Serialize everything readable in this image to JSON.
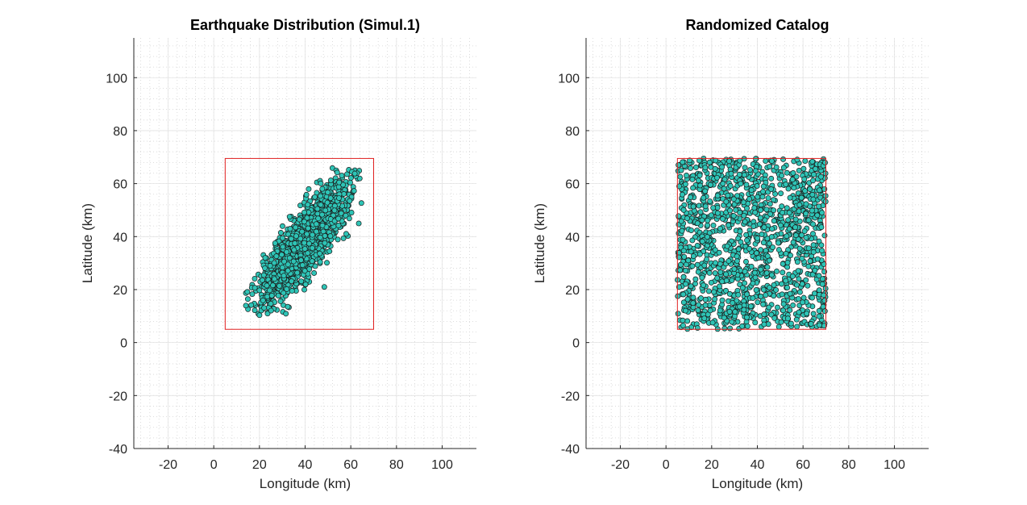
{
  "chart_data": [
    {
      "type": "scatter",
      "title": "Earthquake Distribution (Simul.1)",
      "xlabel": "Longitude (km)",
      "ylabel": "Latitude (km)",
      "xlim": [
        -35,
        115
      ],
      "ylim": [
        -40,
        115
      ],
      "xticks": [
        -20,
        0,
        20,
        40,
        60,
        80,
        100
      ],
      "yticks": [
        -40,
        -20,
        0,
        20,
        40,
        60,
        80,
        100
      ],
      "grid": "major and minor (dotted)",
      "marker_color": "#2ec4b6",
      "marker_edge": "#1a1a1a",
      "box_color": "#e02020",
      "region_box": {
        "x": [
          5,
          70
        ],
        "y": [
          5,
          69.5
        ]
      },
      "points_distribution": {
        "shape": "elongated cluster oriented SW-NE",
        "center": [
          40,
          38
        ],
        "spread_along": 15,
        "spread_across": 4.5,
        "orientation_deg": 50,
        "count": 1400,
        "x_range": [
          14,
          65
        ],
        "y_range": [
          10,
          66
        ]
      }
    },
    {
      "type": "scatter",
      "title": "Randomized Catalog",
      "xlabel": "Longitude (km)",
      "ylabel": "Latitude (km)",
      "xlim": [
        -35,
        115
      ],
      "ylim": [
        -40,
        115
      ],
      "xticks": [
        -20,
        0,
        20,
        40,
        60,
        80,
        100
      ],
      "yticks": [
        -40,
        -20,
        0,
        20,
        40,
        60,
        80,
        100
      ],
      "grid": "major and minor (dotted)",
      "marker_color": "#2ec4b6",
      "marker_edge": "#1a1a1a",
      "box_color": "#e02020",
      "region_box": {
        "x": [
          5,
          70
        ],
        "y": [
          5,
          69.5
        ]
      },
      "points_distribution": {
        "shape": "uniform random within region box",
        "count": 1400,
        "x_range": [
          5,
          70
        ],
        "y_range": [
          5,
          69.5
        ]
      }
    }
  ]
}
